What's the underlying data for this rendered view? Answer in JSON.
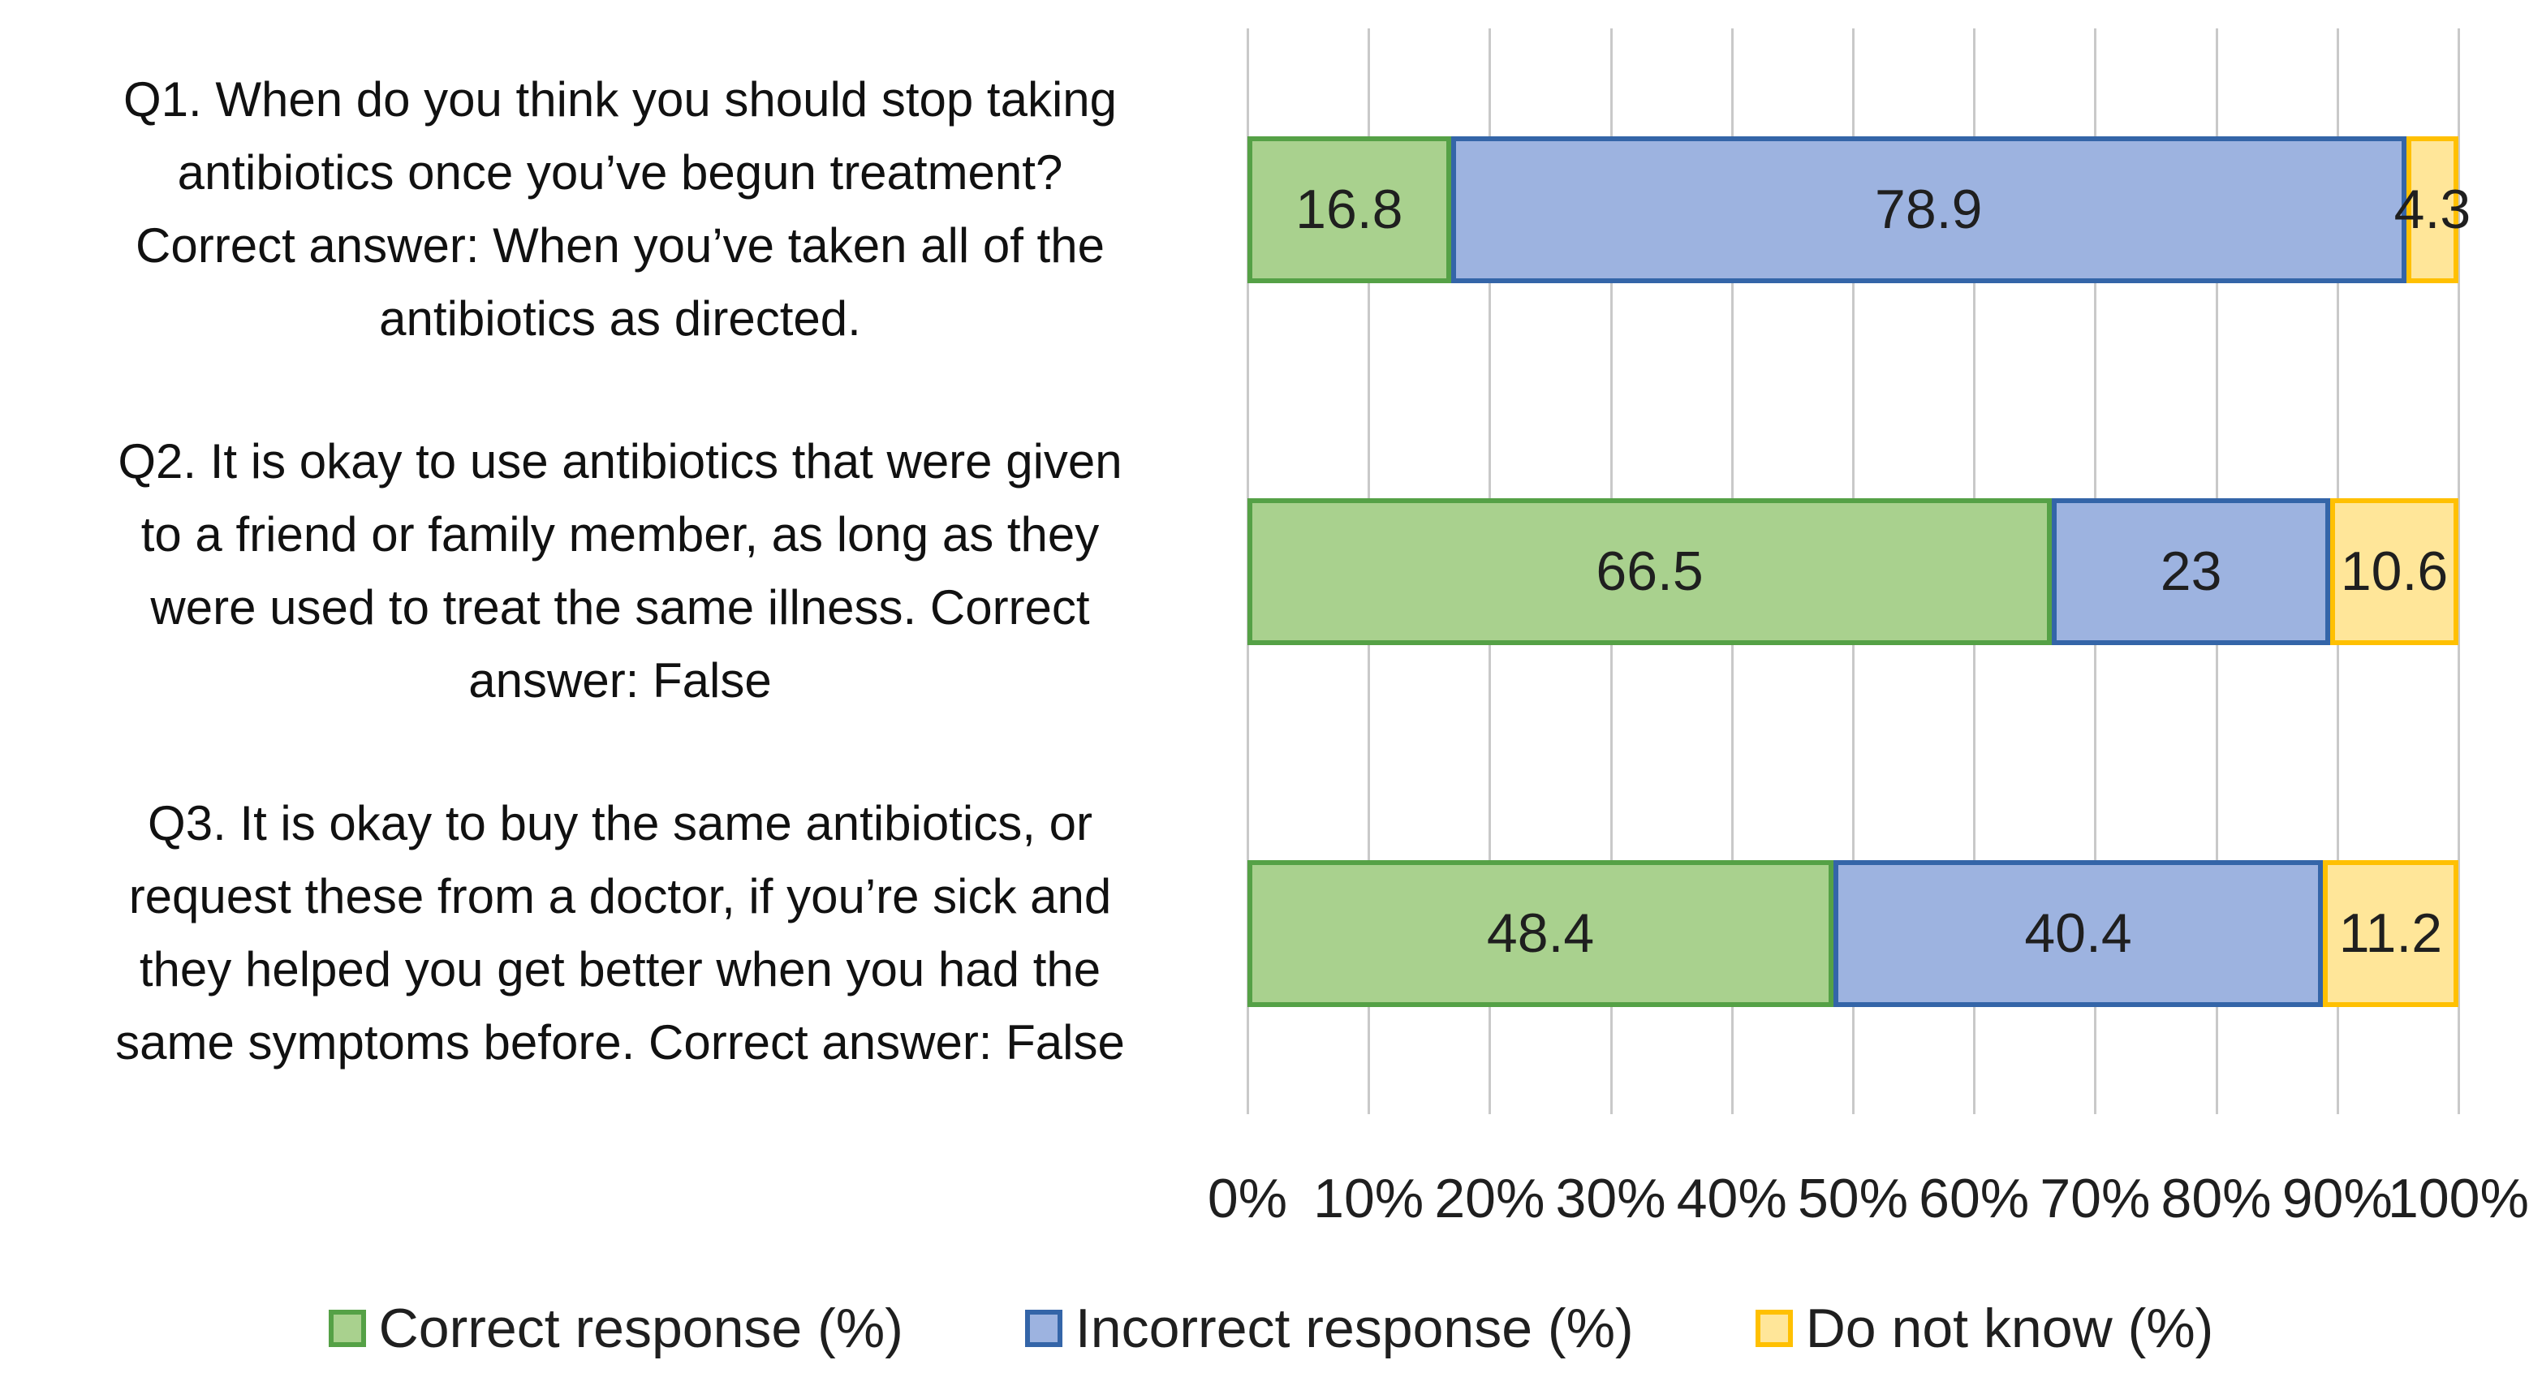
{
  "chart_data": {
    "type": "bar",
    "subtype": "horizontal-100pct-stacked",
    "title": "",
    "unit": "%",
    "categories": [
      "Q1. When do you think you should stop taking\nantibiotics once you’ve begun treatment?\nCorrect answer: When you’ve taken all of the\nantibiotics as directed.",
      "Q2. It is okay to use antibiotics that were given\nto a friend or family member, as long as they\nwere used to treat the same illness. Correct\nanswer: False",
      "Q3. It is okay to buy the same antibiotics, or\nrequest these from a doctor, if you’re sick and\nthey helped you get better when you had the\nsame symptoms before. Correct answer: False"
    ],
    "series": [
      {
        "name": "Correct response (%)",
        "values": [
          16.8,
          66.5,
          48.4
        ],
        "fill": "#A9D18E",
        "border": "#55A146"
      },
      {
        "name": "Incorrect response (%)",
        "values": [
          78.9,
          23,
          40.4
        ],
        "fill": "#9DB3E0",
        "border": "#3465A8"
      },
      {
        "name": "Do not know (%)",
        "values": [
          4.3,
          10.6,
          11.2
        ],
        "fill": "#FFE699",
        "border": "#FFC001"
      }
    ],
    "x_ticks": [
      "0%",
      "10%",
      "20%",
      "30%",
      "40%",
      "50%",
      "60%",
      "70%",
      "80%",
      "90%",
      "100%"
    ],
    "xlim": [
      0,
      100
    ],
    "grid": "vertical",
    "gridline_color": "#C9C9C9",
    "data_labels": "inside-center",
    "legend_position": "bottom"
  }
}
